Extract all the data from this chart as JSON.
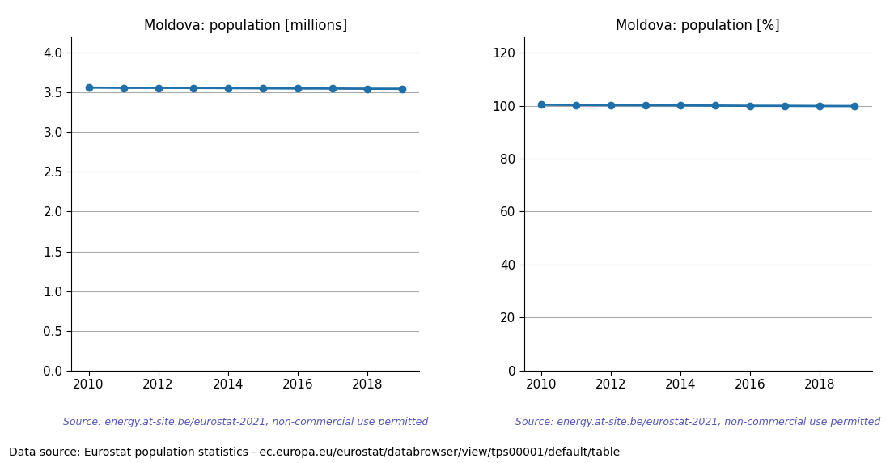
{
  "years": [
    2010,
    2011,
    2012,
    2013,
    2014,
    2015,
    2016,
    2017,
    2018,
    2019
  ],
  "population_millions": [
    3.563,
    3.56,
    3.56,
    3.559,
    3.557,
    3.554,
    3.552,
    3.551,
    3.549,
    3.548
  ],
  "population_pct": [
    100.42,
    100.34,
    100.3,
    100.25,
    100.18,
    100.09,
    100.02,
    100.0,
    99.94,
    99.91
  ],
  "title_millions": "Moldova: population [millions]",
  "title_pct": "Moldova: population [%]",
  "ylim_millions": [
    0.0,
    4.2
  ],
  "ylim_pct": [
    0,
    126
  ],
  "yticks_millions": [
    0.0,
    0.5,
    1.0,
    1.5,
    2.0,
    2.5,
    3.0,
    3.5,
    4.0
  ],
  "yticks_pct": [
    0,
    20,
    40,
    60,
    80,
    100,
    120
  ],
  "line_color": "#1f6fa8",
  "marker": "o",
  "marker_size": 6,
  "source_text": "Source: energy.at-site.be/eurostat-2021, non-commercial use permitted",
  "source_color": "#5555bb",
  "footer_text": "Data source: Eurostat population statistics - ec.europa.eu/eurostat/databrowser/view/tps00001/default/table",
  "footer_color": "#000000",
  "grid_color": "#aaaaaa",
  "background_color": "#ffffff",
  "title_fontsize": 12,
  "tick_fontsize": 11,
  "source_fontsize": 9,
  "footer_fontsize": 10
}
